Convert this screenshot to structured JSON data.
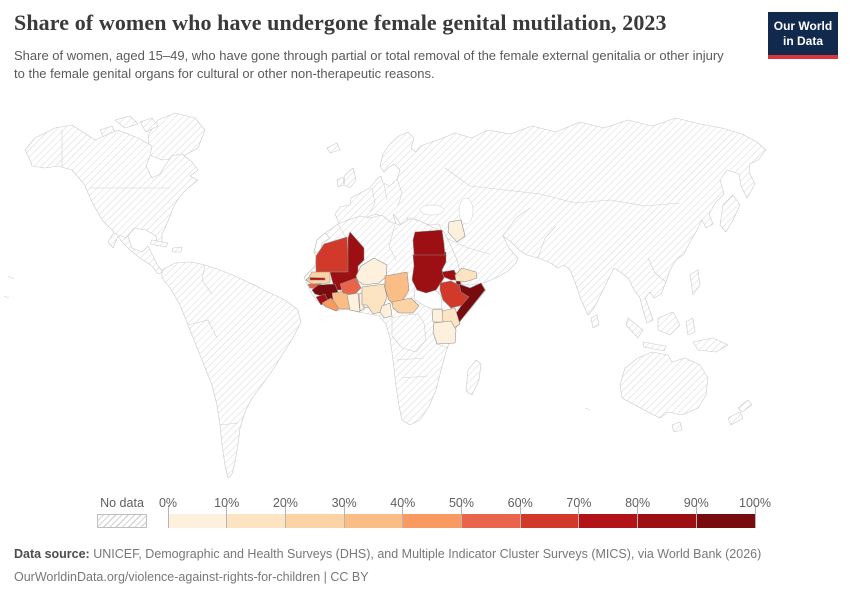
{
  "header": {
    "title": "Share of women who have undergone female genital mutilation, 2023",
    "subtitle": "Share of women, aged 15–49, who have gone through partial or total removal of the female external genitalia or other injury to the female genital organs for cultural or other non-therapeutic reasons.",
    "logo": {
      "line1": "Our World",
      "line2": "in Data",
      "bg_color": "#12294e",
      "accent_color": "#d8353c"
    }
  },
  "legend": {
    "no_data_label": "No data",
    "tick_labels": [
      "0%",
      "10%",
      "20%",
      "30%",
      "40%",
      "50%",
      "60%",
      "70%",
      "80%",
      "90%",
      "100%"
    ],
    "bin_colors": [
      "#fdf1dd",
      "#fce4c2",
      "#fbd3a4",
      "#fabd86",
      "#f99a60",
      "#e8644b",
      "#d13a2b",
      "#b11318",
      "#9c0f13",
      "#770b0e"
    ]
  },
  "footer": {
    "source_label": "Data source:",
    "source_text": " UNICEF, Demographic and Health Surveys (DHS), and Multiple Indicator Cluster Surveys (MICS), via World Bank (2026)",
    "link_line": "OurWorldinData.org/violence-against-rights-for-children | CC BY"
  },
  "chart_data": {
    "type": "choropleth-map",
    "title": "Share of women who have undergone female genital mutilation, 2023",
    "year": "2023",
    "unit": "share of women aged 15–49",
    "no_data_style": "diagonal-hatch",
    "bins": [
      "0-10%",
      "10-20%",
      "20-30%",
      "30-40%",
      "40-50%",
      "50-60%",
      "60-70%",
      "70-80%",
      "80-90%",
      "90-100%"
    ],
    "countries": [
      {
        "name": "Mauritania",
        "bin": "60-70%"
      },
      {
        "name": "Senegal",
        "bin": "20-30%"
      },
      {
        "name": "Gambia",
        "bin": "70-80%"
      },
      {
        "name": "Guinea-Bissau",
        "bin": "50-60%"
      },
      {
        "name": "Guinea",
        "bin": "90-100%"
      },
      {
        "name": "Sierra Leone",
        "bin": "80-90%"
      },
      {
        "name": "Liberia",
        "bin": "40-50%"
      },
      {
        "name": "Cote d'Ivoire",
        "bin": "30-40%"
      },
      {
        "name": "Ghana",
        "bin": "0-10%"
      },
      {
        "name": "Togo",
        "bin": "0-10%"
      },
      {
        "name": "Benin",
        "bin": "0-10%"
      },
      {
        "name": "Burkina Faso",
        "bin": "50-60%"
      },
      {
        "name": "Mali",
        "bin": "80-90%"
      },
      {
        "name": "Niger",
        "bin": "0-10%"
      },
      {
        "name": "Nigeria",
        "bin": "10-20%"
      },
      {
        "name": "Chad",
        "bin": "30-40%"
      },
      {
        "name": "Cameroon",
        "bin": "0-10%"
      },
      {
        "name": "Central African Republic",
        "bin": "20-30%"
      },
      {
        "name": "Sudan",
        "bin": "80-90%"
      },
      {
        "name": "Egypt",
        "bin": "80-90%"
      },
      {
        "name": "Eritrea",
        "bin": "80-90%"
      },
      {
        "name": "Djibouti",
        "bin": "90-100%"
      },
      {
        "name": "Ethiopia",
        "bin": "60-70%"
      },
      {
        "name": "Somalia",
        "bin": "90-100%"
      },
      {
        "name": "Kenya",
        "bin": "10-20%"
      },
      {
        "name": "Uganda",
        "bin": "0-10%"
      },
      {
        "name": "Tanzania",
        "bin": "0-10%"
      },
      {
        "name": "Yemen",
        "bin": "10-20%"
      },
      {
        "name": "Iraq",
        "bin": "0-10%"
      }
    ]
  }
}
